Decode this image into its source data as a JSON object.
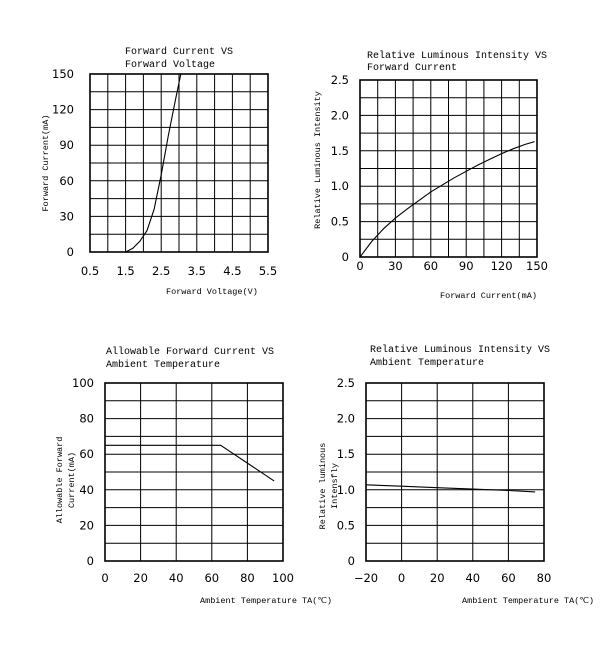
{
  "chart_data": [
    {
      "type": "line",
      "title_lines": [
        "Forward Current VS",
        "Forward Voltage"
      ],
      "xlabel": "Forward  Voltage(V)",
      "ylabel": "Forward Current(mA)",
      "x_ticks": [
        "0.5",
        "1.5",
        "2.5",
        "3.5",
        "4.5",
        "5.5"
      ],
      "y_ticks": [
        "0",
        "30",
        "60",
        "90",
        "120",
        "150"
      ],
      "xlim": [
        0.5,
        5.5
      ],
      "ylim": [
        0,
        150
      ],
      "grid": true,
      "series": [
        {
          "x": [
            1.5,
            1.7,
            1.9,
            2.1,
            2.3,
            2.5,
            2.7,
            2.9,
            3.05
          ],
          "y": [
            0,
            3,
            9,
            18,
            36,
            65,
            98,
            128,
            150
          ]
        }
      ]
    },
    {
      "type": "line",
      "title_lines": [
        "Relative Luminous Intensity  VS",
        "Forward Current"
      ],
      "xlabel": "Forward   Current(mA)",
      "ylabel": "Relative Luminous Intensity",
      "x_ticks": [
        "0",
        "30",
        "60",
        "90",
        "120",
        "150"
      ],
      "y_ticks": [
        "0",
        "0.5",
        "1.0",
        "1.5",
        "2.0",
        "2.5"
      ],
      "xlim": [
        0,
        150
      ],
      "ylim": [
        0,
        2.5
      ],
      "grid": true,
      "series": [
        {
          "x": [
            0,
            10,
            20,
            30,
            40,
            50,
            60,
            70,
            80,
            90,
            100,
            110,
            120,
            130,
            140,
            148
          ],
          "y": [
            0,
            0.22,
            0.4,
            0.55,
            0.68,
            0.8,
            0.92,
            1.02,
            1.12,
            1.21,
            1.3,
            1.38,
            1.46,
            1.53,
            1.59,
            1.63
          ]
        }
      ]
    },
    {
      "type": "line",
      "title_lines": [
        "Allowable Forward Current VS",
        "Ambient Temperature"
      ],
      "xlabel": "Ambient Temperature TA(℃)",
      "ylabel_lines": [
        "Allowable Forward",
        "Current(mA)"
      ],
      "x_ticks": [
        "0",
        "20",
        "40",
        "60",
        "80",
        "100"
      ],
      "y_ticks": [
        "0",
        "20",
        "40",
        "60",
        "80",
        "100"
      ],
      "xlim": [
        0,
        100
      ],
      "ylim": [
        0,
        100
      ],
      "grid": true,
      "series": [
        {
          "x": [
            0,
            65,
            95
          ],
          "y": [
            65,
            65,
            45
          ]
        }
      ]
    },
    {
      "type": "line",
      "title_lines": [
        "Relative Luminous Intensity VS",
        "Ambient Temperature"
      ],
      "xlabel": "Ambient Temperature TA(℃)",
      "ylabel_lines": [
        "Relative luminous",
        "Intensfly"
      ],
      "x_ticks": [
        "−20",
        "0",
        "20",
        "40",
        "60",
        "80"
      ],
      "y_ticks": [
        "0",
        "0.5",
        "1.0",
        "1.5",
        "2.0",
        "2.5"
      ],
      "xlim": [
        -20,
        80
      ],
      "ylim": [
        0,
        2.5
      ],
      "grid": true,
      "series": [
        {
          "x": [
            -20,
            0,
            20,
            40,
            60,
            75
          ],
          "y": [
            1.07,
            1.05,
            1.03,
            1.01,
            0.99,
            0.97
          ]
        }
      ]
    }
  ]
}
